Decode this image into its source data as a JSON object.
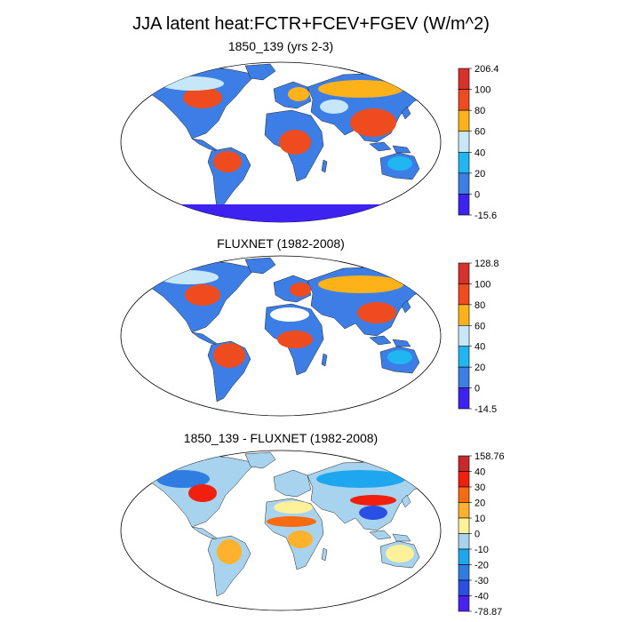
{
  "figure": {
    "title": "JJA latent heat:FCTR+FCEV+FGEV (W/m^2)"
  },
  "panels": [
    {
      "title": "1850_139 (yrs 2-3)",
      "colorbar": {
        "labels": [
          "206.4",
          "100",
          "80",
          "60",
          "40",
          "20",
          "0",
          "-15.6"
        ],
        "colors": [
          "#d8302b",
          "#ee4b1f",
          "#fdb21a",
          "#c6e7f7",
          "#1fb6f2",
          "#3d7ee6",
          "#3d22f2"
        ]
      }
    },
    {
      "title": "FLUXNET (1982-2008)",
      "colorbar": {
        "labels": [
          "128.8",
          "100",
          "80",
          "60",
          "40",
          "20",
          "0",
          "-14.5"
        ],
        "colors": [
          "#d8302b",
          "#ee4b1f",
          "#fdb21a",
          "#c6e7f7",
          "#1fb6f2",
          "#3d7ee6",
          "#3d22f2"
        ]
      }
    },
    {
      "title": "1850_139 - FLUXNET (1982-2008)",
      "colorbar": {
        "labels": [
          "158.76",
          "40",
          "30",
          "20",
          "10",
          "0",
          "-10",
          "-20",
          "-30",
          "-40",
          "-78.87"
        ],
        "colors": [
          "#c9292a",
          "#f11f0d",
          "#f86b10",
          "#fdb12c",
          "#fff09a",
          "#a8d3ee",
          "#1ea7ef",
          "#2f7de0",
          "#2a4fe4",
          "#4a22f0"
        ]
      }
    }
  ]
}
